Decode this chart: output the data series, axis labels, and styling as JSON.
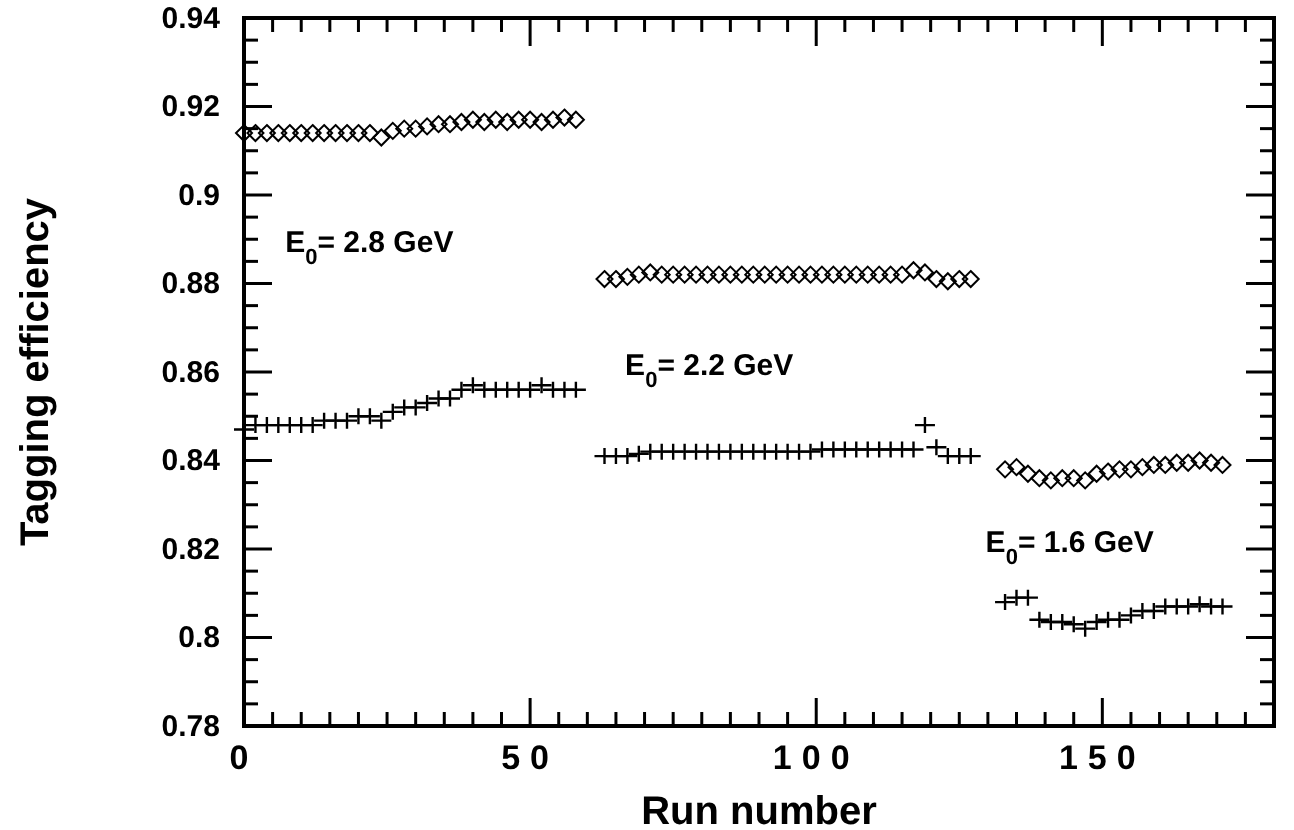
{
  "chart_data": {
    "type": "scatter",
    "xlabel": "Run number",
    "ylabel": "Tagging efficiency",
    "xlim": [
      0,
      180
    ],
    "xticks": [
      {
        "value": 0,
        "label": "0"
      },
      {
        "value": 5,
        "label": null
      },
      {
        "value": 10,
        "label": null
      },
      {
        "value": 15,
        "label": null
      },
      {
        "value": 20,
        "label": null
      },
      {
        "value": 25,
        "label": null
      },
      {
        "value": 30,
        "label": null
      },
      {
        "value": 35,
        "label": null
      },
      {
        "value": 40,
        "label": null
      },
      {
        "value": 45,
        "label": null
      },
      50,
      {
        "value": 55,
        "label": null
      },
      {
        "value": 60,
        "label": null
      },
      {
        "value": 65,
        "label": null
      },
      {
        "value": 70,
        "label": null
      },
      {
        "value": 75,
        "label": null
      },
      {
        "value": 80,
        "label": null
      },
      {
        "value": 85,
        "label": null
      },
      {
        "value": 90,
        "label": null
      },
      {
        "value": 95,
        "label": null
      },
      100,
      {
        "value": 105,
        "label": null
      },
      {
        "value": 110,
        "label": null
      },
      {
        "value": 115,
        "label": null
      },
      {
        "value": 120,
        "label": null
      },
      {
        "value": 125,
        "label": null
      },
      {
        "value": 130,
        "label": null
      },
      {
        "value": 135,
        "label": null
      },
      {
        "value": 140,
        "label": null
      },
      {
        "value": 145,
        "label": null
      },
      150,
      {
        "value": 155,
        "label": null
      },
      {
        "value": 160,
        "label": null
      },
      {
        "value": 165,
        "label": null
      },
      {
        "value": 170,
        "label": null
      },
      {
        "value": 175,
        "label": null
      }
    ],
    "ylim": [
      0.78,
      0.94
    ],
    "yticks": [
      0.78,
      {
        "value": 0.785,
        "label": null
      },
      {
        "value": 0.79,
        "label": null
      },
      {
        "value": 0.795,
        "label": null
      },
      0.8,
      {
        "value": 0.805,
        "label": null
      },
      {
        "value": 0.81,
        "label": null
      },
      {
        "value": 0.815,
        "label": null
      },
      0.82,
      {
        "value": 0.825,
        "label": null
      },
      {
        "value": 0.83,
        "label": null
      },
      {
        "value": 0.835,
        "label": null
      },
      0.84,
      {
        "value": 0.845,
        "label": null
      },
      {
        "value": 0.85,
        "label": null
      },
      {
        "value": 0.855,
        "label": null
      },
      0.86,
      {
        "value": 0.865,
        "label": null
      },
      {
        "value": 0.87,
        "label": null
      },
      {
        "value": 0.875,
        "label": null
      },
      0.88,
      {
        "value": 0.885,
        "label": null
      },
      {
        "value": 0.89,
        "label": null
      },
      {
        "value": 0.895,
        "label": null
      },
      0.9,
      {
        "value": 0.905,
        "label": null
      },
      {
        "value": 0.91,
        "label": null
      },
      {
        "value": 0.915,
        "label": null
      },
      0.92,
      {
        "value": 0.925,
        "label": null
      },
      {
        "value": 0.93,
        "label": null
      },
      {
        "value": 0.935,
        "label": null
      },
      0.94
    ],
    "grid": false,
    "x": [
      0,
      2,
      4,
      6,
      8,
      10,
      12,
      14,
      16,
      18,
      20,
      22,
      24,
      26,
      28,
      30,
      32,
      34,
      36,
      38,
      40,
      42,
      44,
      46,
      48,
      50,
      52,
      54,
      56,
      58,
      63,
      65,
      67,
      69,
      71,
      73,
      75,
      77,
      79,
      81,
      83,
      85,
      87,
      89,
      91,
      93,
      95,
      97,
      99,
      101,
      103,
      105,
      107,
      109,
      111,
      113,
      115,
      117,
      119,
      121,
      123,
      125,
      127,
      133,
      135,
      137,
      139,
      141,
      143,
      145,
      147,
      149,
      151,
      153,
      155,
      157,
      159,
      161,
      163,
      165,
      167,
      169,
      171
    ],
    "series": [
      {
        "marker": "diamond",
        "color": "#000000",
        "values": [
          0.914,
          0.914,
          0.914,
          0.914,
          0.914,
          0.914,
          0.914,
          0.914,
          0.914,
          0.914,
          0.914,
          0.914,
          0.913,
          0.9145,
          0.915,
          0.915,
          0.9155,
          0.916,
          0.916,
          0.9165,
          0.917,
          0.9165,
          0.917,
          0.9165,
          0.917,
          0.917,
          0.9165,
          0.917,
          0.9175,
          0.917,
          0.881,
          0.881,
          0.8815,
          0.882,
          0.8825,
          0.882,
          0.882,
          0.882,
          0.882,
          0.882,
          0.882,
          0.882,
          0.882,
          0.882,
          0.882,
          0.882,
          0.882,
          0.882,
          0.882,
          0.882,
          0.882,
          0.882,
          0.882,
          0.882,
          0.882,
          0.882,
          0.882,
          0.883,
          0.8825,
          0.881,
          0.8805,
          0.881,
          0.881,
          0.838,
          0.8385,
          0.837,
          0.836,
          0.8355,
          0.836,
          0.836,
          0.8355,
          0.837,
          0.8375,
          0.838,
          0.838,
          0.8385,
          0.839,
          0.839,
          0.8395,
          0.8395,
          0.84,
          0.8395,
          0.839
        ]
      },
      {
        "marker": "cross",
        "color": "#000000",
        "values": [
          0.847,
          0.848,
          0.848,
          0.848,
          0.848,
          0.848,
          0.848,
          0.849,
          0.849,
          0.849,
          0.85,
          0.85,
          0.849,
          0.851,
          0.852,
          0.852,
          0.853,
          0.854,
          0.854,
          0.856,
          0.857,
          0.856,
          0.856,
          0.856,
          0.856,
          0.856,
          0.857,
          0.856,
          0.856,
          0.856,
          0.841,
          0.841,
          0.841,
          0.8415,
          0.842,
          0.842,
          0.842,
          0.842,
          0.842,
          0.842,
          0.842,
          0.842,
          0.842,
          0.842,
          0.842,
          0.842,
          0.842,
          0.842,
          0.842,
          0.8425,
          0.8425,
          0.8425,
          0.8425,
          0.8425,
          0.8425,
          0.8425,
          0.8425,
          0.8425,
          0.848,
          0.843,
          0.841,
          0.841,
          0.841,
          0.808,
          0.809,
          0.809,
          0.804,
          0.8035,
          0.8035,
          0.803,
          0.802,
          0.8035,
          0.804,
          0.804,
          0.805,
          0.806,
          0.806,
          0.807,
          0.807,
          0.807,
          0.8075,
          0.807,
          0.807
        ]
      }
    ],
    "annotations": [
      "E$_{0}$= 2.8 GeV",
      "E$_{0}$= 2.2 GeV",
      "E$_{0}$= 1.6 GeV"
    ]
  }
}
